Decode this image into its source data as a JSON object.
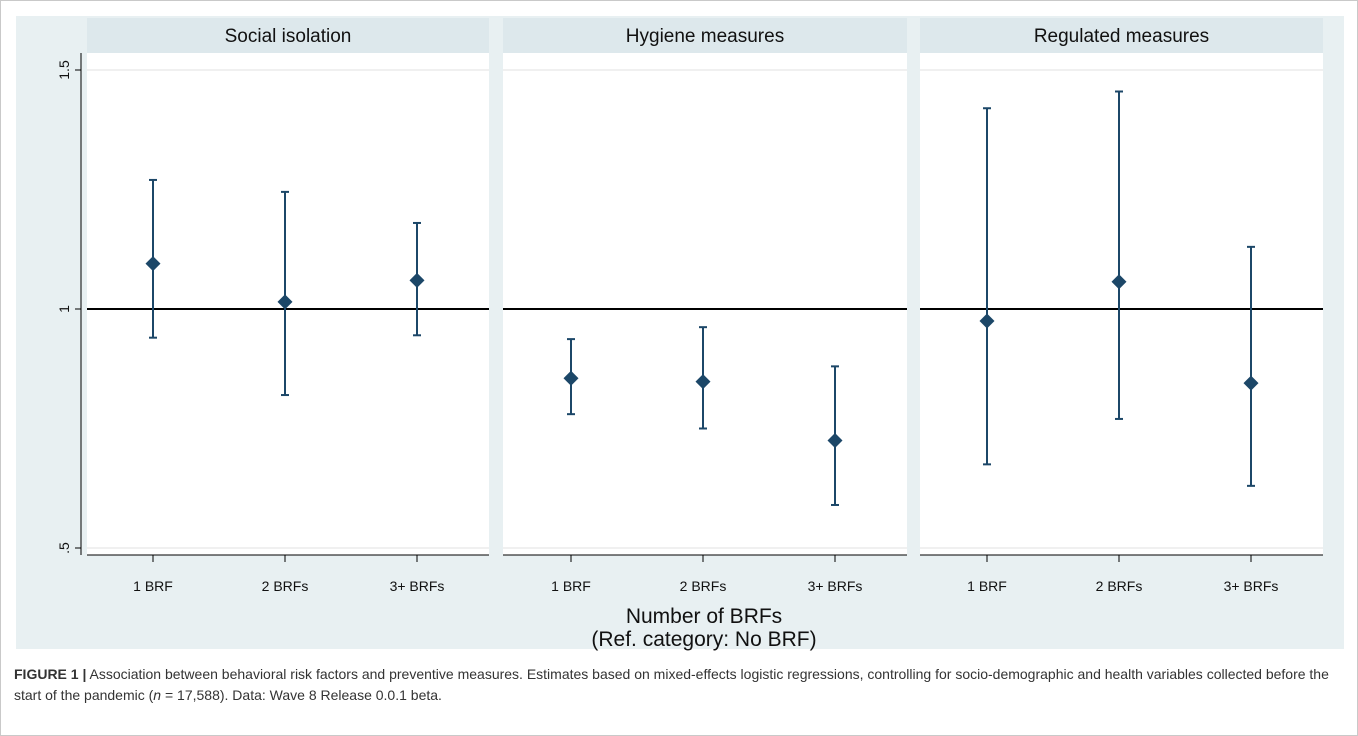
{
  "colors": {
    "outer_bg": "#e8f0f2",
    "panel_bg": "#ffffff",
    "header_bg": "#dde8ec",
    "marker": "#1c4768",
    "reference_line": "#000000",
    "gridline": "#ececec"
  },
  "chart_data": {
    "type": "scatter",
    "style": "point estimates with confidence interval error bars, faceted",
    "categories": [
      "1 BRF",
      "2 BRFs",
      "3+ BRFs"
    ],
    "panels": [
      {
        "title": "Social isolation",
        "estimates": [
          1.095,
          1.015,
          1.06
        ],
        "ci_low": [
          0.94,
          0.82,
          0.945
        ],
        "ci_high": [
          1.27,
          1.245,
          1.18
        ]
      },
      {
        "title": "Hygiene measures",
        "estimates": [
          0.855,
          0.848,
          0.725
        ],
        "ci_low": [
          0.78,
          0.75,
          0.59
        ],
        "ci_high": [
          0.937,
          0.962,
          0.88
        ]
      },
      {
        "title": "Regulated measures",
        "estimates": [
          0.975,
          1.057,
          0.845
        ],
        "ci_low": [
          0.675,
          0.77,
          0.63
        ],
        "ci_high": [
          1.42,
          1.455,
          1.13
        ]
      }
    ],
    "ylim": [
      0.48,
      1.52
    ],
    "yticks": [
      0.5,
      1,
      1.5
    ],
    "ytick_labels": [
      ".5",
      "1",
      "1.5"
    ],
    "reference_line_y": 1,
    "xlabel_line1": "Number of BRFs",
    "xlabel_line2": "(Ref. category: No BRF)",
    "ylabel": "",
    "grid": true,
    "legend": "none"
  },
  "caption": {
    "label": "FIGURE 1 |",
    "text_before_n": " Association between behavioral risk factors and preventive measures. Estimates based on mixed-effects logistic regressions, controlling for socio-demographic and health variables collected before the start of the pandemic (",
    "n_symbol": "n",
    "text_after_n": " = 17,588). Data: Wave 8 Release 0.0.1 beta."
  }
}
